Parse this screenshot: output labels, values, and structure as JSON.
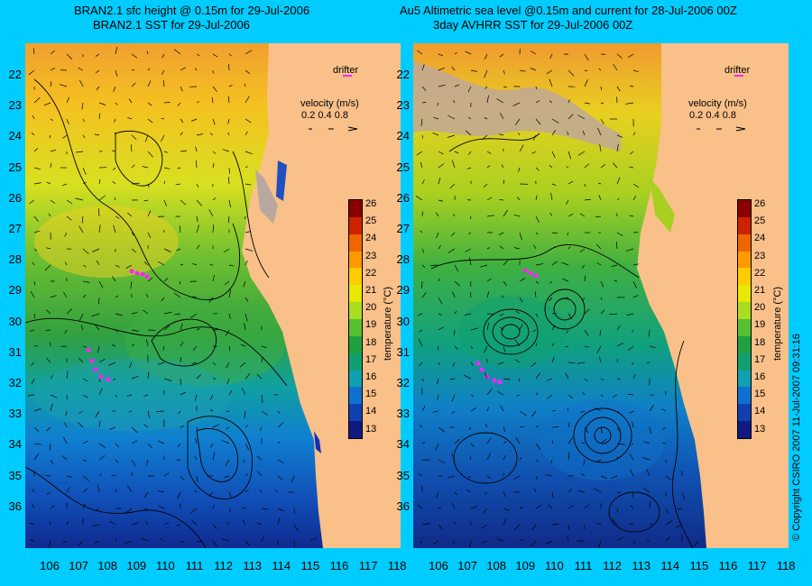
{
  "titles": {
    "left_line1": "BRAN2.1 sfc height @ 0.15m for 29-Jul-2006",
    "left_line2": "BRAN2.1 SST for 29-Jul-2006",
    "right_line1": "Au5 Altimetric sea level  @0.15m and current for 28-Jul-2006 00Z",
    "right_line2": "3day AVHRR SST for 29-Jul-2006 00Z"
  },
  "legend": {
    "drifter_label": "drifter",
    "velocity_label": "velocity (m/s)",
    "velocity_scale": "0.2 0.4 0.8"
  },
  "colorbar": {
    "title": "temperature (°C)",
    "ticks": [
      "26",
      "25",
      "24",
      "23",
      "22",
      "21",
      "20",
      "19",
      "18",
      "17",
      "16",
      "15",
      "14",
      "13"
    ],
    "colors": [
      "#8b0000",
      "#cc2200",
      "#ee6600",
      "#ff9900",
      "#ffcc00",
      "#e8e800",
      "#a8dd20",
      "#55c030",
      "#20a040",
      "#10a070",
      "#10a0b0",
      "#1070d0",
      "#1040b0",
      "#101a80"
    ]
  },
  "axes": {
    "y_labels": [
      "22",
      "23",
      "24",
      "25",
      "26",
      "27",
      "28",
      "29",
      "30",
      "31",
      "32",
      "33",
      "34",
      "35",
      "36"
    ],
    "x_labels": [
      "106",
      "107",
      "108",
      "109",
      "110",
      "111",
      "112",
      "113",
      "114",
      "115",
      "116",
      "117",
      "118"
    ]
  },
  "colors": {
    "background": "#00ccff",
    "land": "#f9c08a",
    "drifter": "#ff22ff"
  },
  "copyright": "© Copyright CSIRO 2007   11-Jul-2007 09:31:16"
}
